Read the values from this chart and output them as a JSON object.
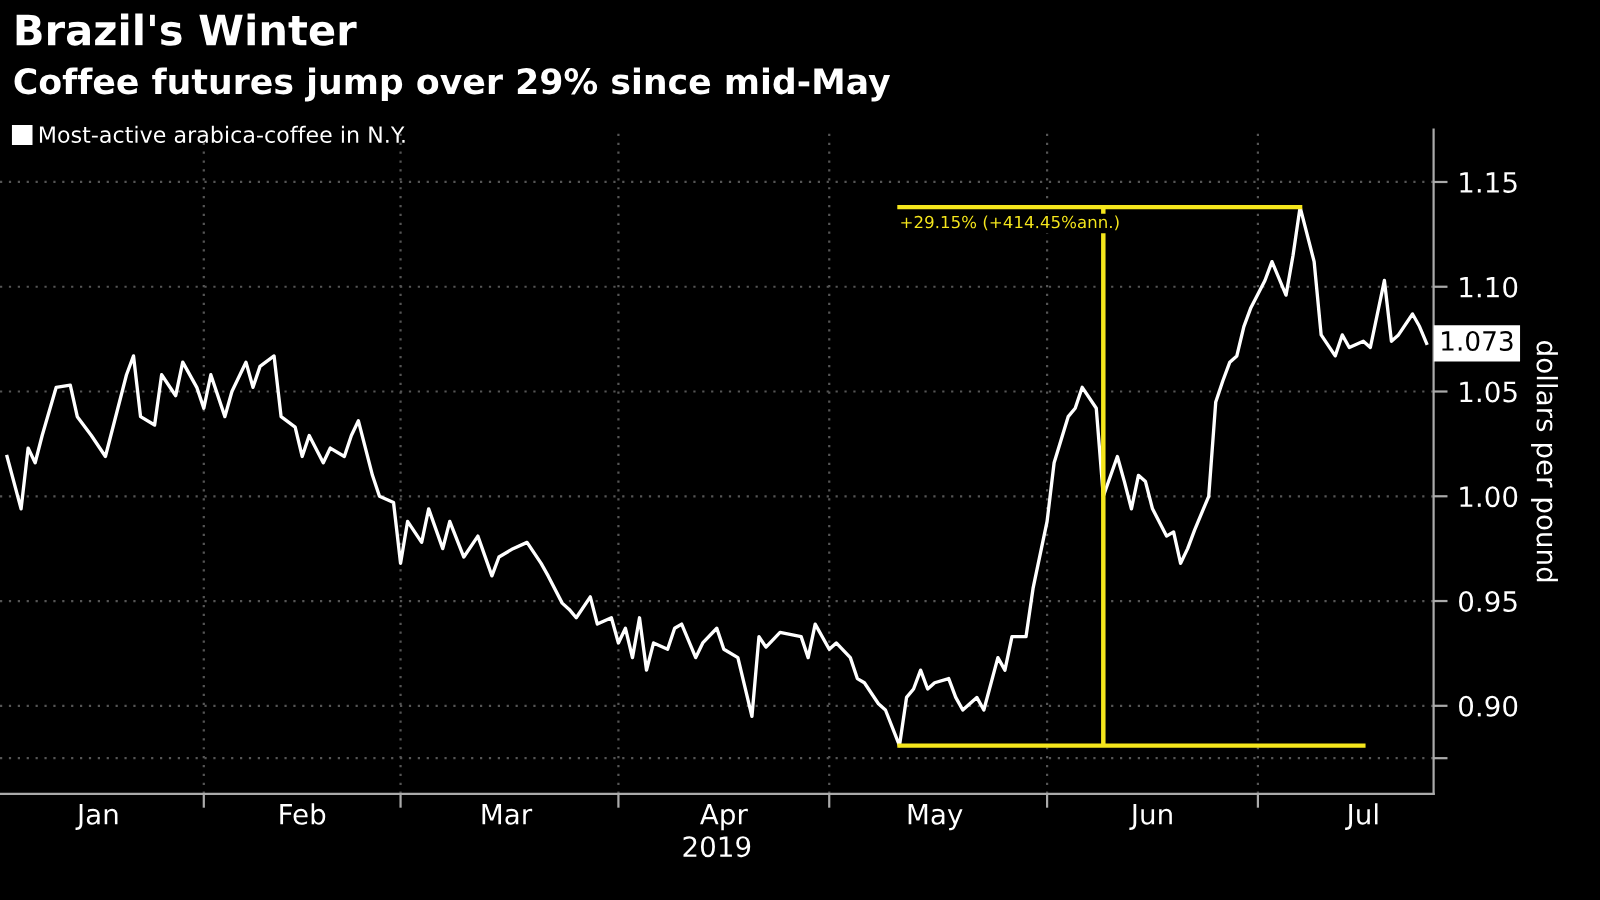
{
  "chart_data": {
    "type": "line",
    "title": "Brazil's Winter",
    "subtitle": "Coffee futures jump over 29% since mid-May",
    "xlabel": "2019",
    "ylabel": "dollars per pound",
    "xlim": [
      "2019-01-03",
      "2019-07-26"
    ],
    "ylim": [
      0.858,
      1.175
    ],
    "xticks": [
      {
        "value": "2019-01-17",
        "label": "Jan"
      },
      {
        "value": "2019-02-01",
        "label": null
      },
      {
        "value": "2019-02-15",
        "label": "Feb"
      },
      {
        "value": "2019-03-01",
        "label": null
      },
      {
        "value": "2019-03-16",
        "label": "Mar"
      },
      {
        "value": "2019-04-01",
        "label": null
      },
      {
        "value": "2019-04-16",
        "label": "Apr"
      },
      {
        "value": "2019-05-01",
        "label": null
      },
      {
        "value": "2019-05-16",
        "label": "May"
      },
      {
        "value": "2019-06-01",
        "label": null
      },
      {
        "value": "2019-06-16",
        "label": "Jun"
      },
      {
        "value": "2019-07-01",
        "label": null
      },
      {
        "value": "2019-07-16",
        "label": "Jul"
      }
    ],
    "yticks": [
      {
        "value": 0.875,
        "label": null
      },
      {
        "value": 0.9,
        "label": "0.90"
      },
      {
        "value": 0.95,
        "label": "0.95"
      },
      {
        "value": 1.0,
        "label": "1.00"
      },
      {
        "value": 1.05,
        "label": "1.05"
      },
      {
        "value": 1.1,
        "label": "1.10"
      },
      {
        "value": 1.15,
        "label": "1.15"
      }
    ],
    "grid": true,
    "legend": "top left",
    "line_style": "solid",
    "marker": "none",
    "series": [
      {
        "name": "Most-active arabica-coffee in N.Y.",
        "color": "#ffffff",
        "x": [
          "2019-01-04",
          "2019-01-06",
          "2019-01-07",
          "2019-01-08",
          "2019-01-09",
          "2019-01-11",
          "2019-01-13",
          "2019-01-14",
          "2019-01-16",
          "2019-01-18",
          "2019-01-20",
          "2019-01-21",
          "2019-01-22",
          "2019-01-23",
          "2019-01-25",
          "2019-01-26",
          "2019-01-28",
          "2019-01-29",
          "2019-01-31",
          "2019-02-01",
          "2019-02-02",
          "2019-02-04",
          "2019-02-05",
          "2019-02-07",
          "2019-02-08",
          "2019-02-09",
          "2019-02-11",
          "2019-02-12",
          "2019-02-14",
          "2019-02-15",
          "2019-02-16",
          "2019-02-18",
          "2019-02-19",
          "2019-02-21",
          "2019-02-22",
          "2019-02-23",
          "2019-02-25",
          "2019-02-26",
          "2019-02-28",
          "2019-03-01",
          "2019-03-02",
          "2019-03-04",
          "2019-03-05",
          "2019-03-07",
          "2019-03-08",
          "2019-03-10",
          "2019-03-12",
          "2019-03-14",
          "2019-03-15",
          "2019-03-17",
          "2019-03-19",
          "2019-03-21",
          "2019-03-22",
          "2019-03-24",
          "2019-03-25",
          "2019-03-26",
          "2019-03-28",
          "2019-03-29",
          "2019-03-31",
          "2019-04-01",
          "2019-04-02",
          "2019-04-03",
          "2019-04-04",
          "2019-04-05",
          "2019-04-06",
          "2019-04-08",
          "2019-04-09",
          "2019-04-10",
          "2019-04-12",
          "2019-04-13",
          "2019-04-15",
          "2019-04-16",
          "2019-04-18",
          "2019-04-20",
          "2019-04-21",
          "2019-04-22",
          "2019-04-24",
          "2019-04-27",
          "2019-04-28",
          "2019-04-29",
          "2019-05-01",
          "2019-05-02",
          "2019-05-04",
          "2019-05-05",
          "2019-05-06",
          "2019-05-08",
          "2019-05-09",
          "2019-05-11",
          "2019-05-12",
          "2019-05-13",
          "2019-05-14",
          "2019-05-15",
          "2019-05-16",
          "2019-05-18",
          "2019-05-19",
          "2019-05-20",
          "2019-05-22",
          "2019-05-23",
          "2019-05-25",
          "2019-05-26",
          "2019-05-27",
          "2019-05-29",
          "2019-05-30",
          "2019-06-01",
          "2019-06-02",
          "2019-06-04",
          "2019-06-05",
          "2019-06-06",
          "2019-06-08",
          "2019-06-09",
          "2019-06-11",
          "2019-06-12",
          "2019-06-13",
          "2019-06-14",
          "2019-06-15",
          "2019-06-16",
          "2019-06-18",
          "2019-06-19",
          "2019-06-20",
          "2019-06-21",
          "2019-06-22",
          "2019-06-24",
          "2019-06-25",
          "2019-06-26",
          "2019-06-27",
          "2019-06-28",
          "2019-06-29",
          "2019-06-30",
          "2019-07-02",
          "2019-07-03",
          "2019-07-05",
          "2019-07-06",
          "2019-07-07",
          "2019-07-09",
          "2019-07-10",
          "2019-07-12",
          "2019-07-13",
          "2019-07-14",
          "2019-07-16",
          "2019-07-17",
          "2019-07-19",
          "2019-07-20",
          "2019-07-21",
          "2019-07-23",
          "2019-07-24",
          "2019-07-25"
        ],
        "values": [
          1.019,
          0.994,
          1.023,
          1.016,
          1.029,
          1.052,
          1.053,
          1.038,
          1.029,
          1.019,
          1.045,
          1.058,
          1.067,
          1.038,
          1.034,
          1.058,
          1.048,
          1.064,
          1.052,
          1.042,
          1.058,
          1.038,
          1.05,
          1.064,
          1.052,
          1.062,
          1.067,
          1.038,
          1.033,
          1.019,
          1.029,
          1.016,
          1.023,
          1.019,
          1.029,
          1.036,
          1.01,
          1.0,
          0.997,
          0.968,
          0.988,
          0.978,
          0.994,
          0.975,
          0.988,
          0.971,
          0.981,
          0.962,
          0.971,
          0.975,
          0.978,
          0.968,
          0.962,
          0.949,
          0.946,
          0.942,
          0.952,
          0.939,
          0.942,
          0.93,
          0.937,
          0.923,
          0.942,
          0.917,
          0.93,
          0.927,
          0.937,
          0.939,
          0.923,
          0.93,
          0.937,
          0.927,
          0.923,
          0.895,
          0.933,
          0.928,
          0.935,
          0.933,
          0.923,
          0.939,
          0.927,
          0.93,
          0.923,
          0.913,
          0.911,
          0.901,
          0.898,
          0.881,
          0.904,
          0.908,
          0.917,
          0.908,
          0.911,
          0.913,
          0.904,
          0.898,
          0.904,
          0.898,
          0.923,
          0.917,
          0.933,
          0.933,
          0.956,
          0.988,
          1.016,
          1.038,
          1.042,
          1.052,
          1.042,
          1.0,
          1.019,
          1.007,
          0.994,
          1.01,
          1.007,
          0.994,
          0.981,
          0.983,
          0.968,
          0.975,
          0.984,
          1.0,
          1.045,
          1.055,
          1.064,
          1.067,
          1.081,
          1.09,
          1.103,
          1.112,
          1.096,
          1.115,
          1.138,
          1.112,
          1.077,
          1.067,
          1.077,
          1.071,
          1.074,
          1.071,
          1.103,
          1.074,
          1.077,
          1.087,
          1.081,
          1.073
        ]
      },
      {
        "color": "#f5e61c",
        "x": [
          "2019-05-11",
          "2019-07-16",
          null,
          "2019-05-11",
          "2019-07-07",
          null,
          "2019-06-09",
          "2019-06-09"
        ],
        "values": [
          0.881,
          0.881,
          null,
          1.138,
          1.138,
          null,
          0.881,
          1.138
        ]
      }
    ],
    "annotations": [
      {
        "text": "+29.15% (+414.45%ann.)",
        "x": "2019-05-11",
        "y": 1.138
      },
      {
        "text": "1.073",
        "x": "2019-07-25",
        "y": 1.073
      }
    ]
  }
}
